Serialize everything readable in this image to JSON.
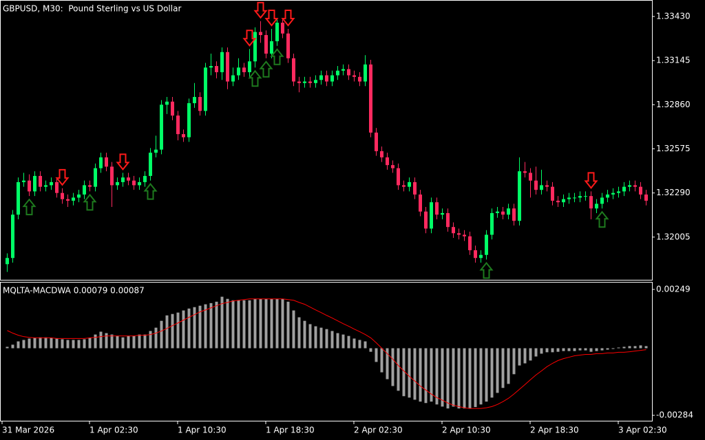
{
  "chart_data": [
    {
      "type": "candlestick",
      "title": "GBPUSD, M30:  Pound Sterling vs US Dollar",
      "up_color": "#00ff66",
      "down_color": "#ff2a5f",
      "up_arrow_color": "#1e7a1e",
      "down_arrow_color": "#ff1a1a",
      "ylim": [
        1.31729,
        1.33532
      ],
      "yticks": [
        {
          "value": 1.3343,
          "label": "1.33430"
        },
        {
          "value": 1.33145,
          "label": "1.33145"
        },
        {
          "value": 1.3286,
          "label": "1.32860"
        },
        {
          "value": 1.32575,
          "label": "1.32575"
        },
        {
          "value": 1.3229,
          "label": "1.32290"
        },
        {
          "value": 1.32005,
          "label": "1.32005"
        }
      ],
      "xticks": [
        {
          "value": -1,
          "label": "31 Mar 2026"
        },
        {
          "value": 15,
          "label": "1 Apr 02:30"
        },
        {
          "value": 31,
          "label": "1 Apr 10:30"
        },
        {
          "value": 47,
          "label": "1 Apr 18:30"
        },
        {
          "value": 63,
          "label": "2 Apr 02:30"
        },
        {
          "value": 79,
          "label": "2 Apr 10:30"
        },
        {
          "value": 95,
          "label": "2 Apr 18:30"
        },
        {
          "value": 111,
          "label": "3 Apr 02:30"
        }
      ],
      "candles": [
        [
          1.3183,
          1.319,
          1.3178,
          1.3187
        ],
        [
          1.3187,
          1.3218,
          1.3184,
          1.3215
        ],
        [
          1.3215,
          1.3239,
          1.3212,
          1.3236
        ],
        [
          1.3236,
          1.3242,
          1.3233,
          1.3237
        ],
        [
          1.3237,
          1.3241,
          1.3227,
          1.323
        ],
        [
          1.323,
          1.3243,
          1.3227,
          1.324
        ],
        [
          1.324,
          1.3243,
          1.323,
          1.3233
        ],
        [
          1.3233,
          1.3237,
          1.323,
          1.3234
        ],
        [
          1.3234,
          1.3239,
          1.3231,
          1.3236
        ],
        [
          1.3236,
          1.3239,
          1.3226,
          1.3229
        ],
        [
          1.3229,
          1.3232,
          1.3222,
          1.3225
        ],
        [
          1.3225,
          1.3228,
          1.322,
          1.3224
        ],
        [
          1.3224,
          1.3229,
          1.3221,
          1.3226
        ],
        [
          1.3226,
          1.3231,
          1.3223,
          1.3228
        ],
        [
          1.3228,
          1.3237,
          1.3225,
          1.3234
        ],
        [
          1.3234,
          1.3237,
          1.323,
          1.3233
        ],
        [
          1.3233,
          1.3248,
          1.323,
          1.3245
        ],
        [
          1.3245,
          1.3255,
          1.3242,
          1.3252
        ],
        [
          1.3252,
          1.3255,
          1.3243,
          1.3246
        ],
        [
          1.3246,
          1.3249,
          1.322,
          1.3234
        ],
        [
          1.3234,
          1.3239,
          1.3231,
          1.3236
        ],
        [
          1.3236,
          1.3242,
          1.3233,
          1.3239
        ],
        [
          1.3239,
          1.3242,
          1.3234,
          1.3237
        ],
        [
          1.3237,
          1.324,
          1.3231,
          1.3234
        ],
        [
          1.3234,
          1.3239,
          1.3231,
          1.3236
        ],
        [
          1.3236,
          1.3243,
          1.3233,
          1.324
        ],
        [
          1.324,
          1.3258,
          1.3237,
          1.3255
        ],
        [
          1.3255,
          1.3266,
          1.3252,
          1.3257
        ],
        [
          1.3257,
          1.3289,
          1.3254,
          1.3286
        ],
        [
          1.3286,
          1.3291,
          1.328,
          1.3288
        ],
        [
          1.3288,
          1.3291,
          1.3276,
          1.3279
        ],
        [
          1.3279,
          1.3282,
          1.3263,
          1.3267
        ],
        [
          1.3267,
          1.327,
          1.3262,
          1.3265
        ],
        [
          1.3265,
          1.329,
          1.3262,
          1.3287
        ],
        [
          1.3287,
          1.33,
          1.3284,
          1.3291
        ],
        [
          1.3291,
          1.3294,
          1.3279,
          1.3282
        ],
        [
          1.3282,
          1.3313,
          1.3279,
          1.331
        ],
        [
          1.331,
          1.3319,
          1.3305,
          1.3311
        ],
        [
          1.3311,
          1.3314,
          1.3303,
          1.3307
        ],
        [
          1.3307,
          1.3323,
          1.3302,
          1.332
        ],
        [
          1.332,
          1.3323,
          1.3296,
          1.3301
        ],
        [
          1.3301,
          1.331,
          1.3298,
          1.3305
        ],
        [
          1.3305,
          1.3316,
          1.3302,
          1.331
        ],
        [
          1.331,
          1.3313,
          1.3304,
          1.3307
        ],
        [
          1.3307,
          1.3322,
          1.3304,
          1.3314
        ],
        [
          1.3314,
          1.3336,
          1.331,
          1.3333
        ],
        [
          1.3333,
          1.334,
          1.3326,
          1.3331
        ],
        [
          1.3331,
          1.3334,
          1.3316,
          1.3319
        ],
        [
          1.3319,
          1.3335,
          1.3316,
          1.3327
        ],
        [
          1.3327,
          1.3342,
          1.3324,
          1.3339
        ],
        [
          1.3339,
          1.3342,
          1.3329,
          1.3332
        ],
        [
          1.3332,
          1.3335,
          1.3313,
          1.3316
        ],
        [
          1.3316,
          1.3319,
          1.3298,
          1.3301
        ],
        [
          1.3301,
          1.3304,
          1.3294,
          1.33
        ],
        [
          1.33,
          1.3304,
          1.3297,
          1.3301
        ],
        [
          1.3301,
          1.3304,
          1.3297,
          1.33
        ],
        [
          1.33,
          1.3305,
          1.3297,
          1.3302
        ],
        [
          1.3302,
          1.3308,
          1.3299,
          1.3305
        ],
        [
          1.3305,
          1.3308,
          1.3298,
          1.3301
        ],
        [
          1.3301,
          1.3308,
          1.3298,
          1.3305
        ],
        [
          1.3305,
          1.3311,
          1.3302,
          1.3308
        ],
        [
          1.3308,
          1.3312,
          1.3305,
          1.3309
        ],
        [
          1.3309,
          1.3312,
          1.3302,
          1.3305
        ],
        [
          1.3305,
          1.3308,
          1.3301,
          1.3304
        ],
        [
          1.3304,
          1.3307,
          1.3298,
          1.3301
        ],
        [
          1.3301,
          1.3318,
          1.3298,
          1.3312
        ],
        [
          1.3312,
          1.3315,
          1.3265,
          1.3268
        ],
        [
          1.3268,
          1.3271,
          1.3253,
          1.3256
        ],
        [
          1.3256,
          1.3259,
          1.3249,
          1.3252
        ],
        [
          1.3252,
          1.3255,
          1.3244,
          1.3247
        ],
        [
          1.3247,
          1.325,
          1.3242,
          1.3245
        ],
        [
          1.3245,
          1.3248,
          1.3231,
          1.3234
        ],
        [
          1.3234,
          1.3237,
          1.323,
          1.3233
        ],
        [
          1.3233,
          1.3239,
          1.323,
          1.3236
        ],
        [
          1.3236,
          1.3239,
          1.3225,
          1.3228
        ],
        [
          1.3228,
          1.3231,
          1.3214,
          1.3217
        ],
        [
          1.3217,
          1.322,
          1.3203,
          1.3206
        ],
        [
          1.3206,
          1.3226,
          1.3203,
          1.3223
        ],
        [
          1.3223,
          1.3226,
          1.3212,
          1.3215
        ],
        [
          1.3215,
          1.3219,
          1.3212,
          1.3216
        ],
        [
          1.3216,
          1.3219,
          1.3204,
          1.3207
        ],
        [
          1.3207,
          1.321,
          1.32,
          1.3203
        ],
        [
          1.3203,
          1.3206,
          1.3199,
          1.3202
        ],
        [
          1.3202,
          1.3205,
          1.3198,
          1.3201
        ],
        [
          1.3201,
          1.3204,
          1.3189,
          1.3192
        ],
        [
          1.3192,
          1.3195,
          1.3184,
          1.3187
        ],
        [
          1.3187,
          1.3192,
          1.3184,
          1.3189
        ],
        [
          1.3189,
          1.3205,
          1.3186,
          1.3202
        ],
        [
          1.3202,
          1.3219,
          1.3199,
          1.3216
        ],
        [
          1.3216,
          1.322,
          1.3213,
          1.3217
        ],
        [
          1.3217,
          1.322,
          1.3212,
          1.3215
        ],
        [
          1.3215,
          1.3222,
          1.3212,
          1.3219
        ],
        [
          1.3219,
          1.3222,
          1.3208,
          1.3211
        ],
        [
          1.3211,
          1.3252,
          1.3208,
          1.3243
        ],
        [
          1.3243,
          1.3249,
          1.3239,
          1.3242
        ],
        [
          1.3242,
          1.3245,
          1.3226,
          1.3237
        ],
        [
          1.3237,
          1.3246,
          1.3228,
          1.3231
        ],
        [
          1.3231,
          1.3244,
          1.3228,
          1.3234
        ],
        [
          1.3234,
          1.3237,
          1.323,
          1.3233
        ],
        [
          1.3233,
          1.3236,
          1.3221,
          1.3224
        ],
        [
          1.3224,
          1.3227,
          1.322,
          1.3223
        ],
        [
          1.3223,
          1.3228,
          1.322,
          1.3225
        ],
        [
          1.3225,
          1.3229,
          1.3222,
          1.3226
        ],
        [
          1.3226,
          1.3229,
          1.3223,
          1.3226
        ],
        [
          1.3226,
          1.323,
          1.3223,
          1.3227
        ],
        [
          1.3227,
          1.323,
          1.3224,
          1.3227
        ],
        [
          1.3227,
          1.323,
          1.3212,
          1.3219
        ],
        [
          1.3219,
          1.3225,
          1.3216,
          1.3222
        ],
        [
          1.3222,
          1.3229,
          1.3219,
          1.3226
        ],
        [
          1.3226,
          1.3231,
          1.3223,
          1.3228
        ],
        [
          1.3228,
          1.3232,
          1.3225,
          1.3229
        ],
        [
          1.3229,
          1.3233,
          1.3226,
          1.323
        ],
        [
          1.323,
          1.3236,
          1.3227,
          1.3233
        ],
        [
          1.3233,
          1.3237,
          1.323,
          1.3234
        ],
        [
          1.3234,
          1.3237,
          1.323,
          1.3233
        ],
        [
          1.3233,
          1.3236,
          1.3225,
          1.3228
        ],
        [
          1.3228,
          1.3231,
          1.3221,
          1.3224
        ]
      ],
      "up_arrows": [
        4,
        15,
        26,
        45,
        47,
        49,
        87,
        108
      ],
      "down_arrows": [
        10,
        21,
        44,
        46,
        48,
        51,
        106
      ]
    },
    {
      "type": "macd",
      "title": "MQLTA-MACDWA 0.00079 0.00087",
      "ylim": [
        -0.00307,
        0.00278
      ],
      "yticks": [
        0.00249,
        -0.00284
      ],
      "histogram": {
        "color": "#a0a0a0",
        "values": [
          6e-05,
          0.00015,
          0.00029,
          0.00035,
          0.00041,
          0.00044,
          0.00046,
          0.00046,
          0.00044,
          0.00041,
          0.00038,
          0.00035,
          0.00035,
          0.00035,
          0.00038,
          0.00044,
          0.00058,
          0.0007,
          0.00064,
          0.00058,
          0.00052,
          0.00046,
          0.00052,
          0.00052,
          0.00058,
          0.00058,
          0.00073,
          0.00087,
          0.00116,
          0.00139,
          0.00145,
          0.00151,
          0.0016,
          0.00168,
          0.00174,
          0.0018,
          0.00186,
          0.00191,
          0.00197,
          0.00218,
          0.00209,
          0.00203,
          0.00203,
          0.00203,
          0.00203,
          0.00209,
          0.00209,
          0.00209,
          0.00209,
          0.00209,
          0.00209,
          0.00197,
          0.0016,
          0.00131,
          0.00116,
          0.00102,
          0.00093,
          0.00087,
          0.00081,
          0.00073,
          0.00064,
          0.00058,
          0.00052,
          0.00041,
          0.00035,
          0.00029,
          -0.00015,
          -0.00058,
          -0.00102,
          -0.00131,
          -0.0016,
          -0.0018,
          -0.00203,
          -0.00209,
          -0.00218,
          -0.00226,
          -0.00232,
          -0.00226,
          -0.00238,
          -0.00247,
          -0.00255,
          -0.00247,
          -0.00255,
          -0.00255,
          -0.00255,
          -0.00249,
          -0.00238,
          -0.00226,
          -0.00209,
          -0.00189,
          -0.00168,
          -0.00151,
          -0.0011,
          -0.00073,
          -0.00064,
          -0.00052,
          -0.00035,
          -0.00023,
          -0.00017,
          -0.00017,
          -0.00015,
          -0.00012,
          -0.00012,
          -0.00012,
          -9e-05,
          -9e-05,
          -0.00015,
          -0.00012,
          -9e-05,
          -6e-05,
          -3e-05,
          3e-05,
          6e-05,
          9e-05,
          9e-05,
          0.00012,
          9e-05
        ]
      },
      "signal": {
        "color": "#ff0000",
        "values": [
          0.00075,
          0.00064,
          0.00055,
          0.00049,
          0.00046,
          0.00044,
          0.00044,
          0.00044,
          0.00044,
          0.00041,
          0.00041,
          0.00041,
          0.00041,
          0.00041,
          0.00041,
          0.00044,
          0.00046,
          0.00049,
          0.00052,
          0.00052,
          0.00052,
          0.00052,
          0.00052,
          0.00052,
          0.00055,
          0.00055,
          0.00058,
          0.00064,
          0.00073,
          0.00084,
          0.00096,
          0.00107,
          0.00119,
          0.00131,
          0.00142,
          0.00154,
          0.00162,
          0.00171,
          0.0018,
          0.00189,
          0.00194,
          0.002,
          0.00203,
          0.00206,
          0.00209,
          0.00209,
          0.00209,
          0.00209,
          0.00209,
          0.00209,
          0.00209,
          0.00206,
          0.00203,
          0.00194,
          0.00186,
          0.00174,
          0.00162,
          0.00151,
          0.00139,
          0.00128,
          0.00116,
          0.00104,
          0.00093,
          0.00081,
          0.0007,
          0.00058,
          0.00044,
          0.00023,
          0,
          -0.00023,
          -0.00046,
          -0.00073,
          -0.00096,
          -0.00119,
          -0.00139,
          -0.0016,
          -0.00177,
          -0.00194,
          -0.00209,
          -0.0022,
          -0.00232,
          -0.00241,
          -0.00247,
          -0.00252,
          -0.00255,
          -0.00255,
          -0.00255,
          -0.00252,
          -0.00247,
          -0.00238,
          -0.00226,
          -0.00212,
          -0.00194,
          -0.00174,
          -0.00154,
          -0.00133,
          -0.00113,
          -0.00096,
          -0.00078,
          -0.00064,
          -0.00052,
          -0.00044,
          -0.00038,
          -0.00032,
          -0.00029,
          -0.00026,
          -0.00026,
          -0.00023,
          -0.00023,
          -0.0002,
          -0.0002,
          -0.00017,
          -0.00017,
          -0.00015,
          -0.00012,
          -9e-05,
          -6e-05
        ]
      }
    }
  ]
}
